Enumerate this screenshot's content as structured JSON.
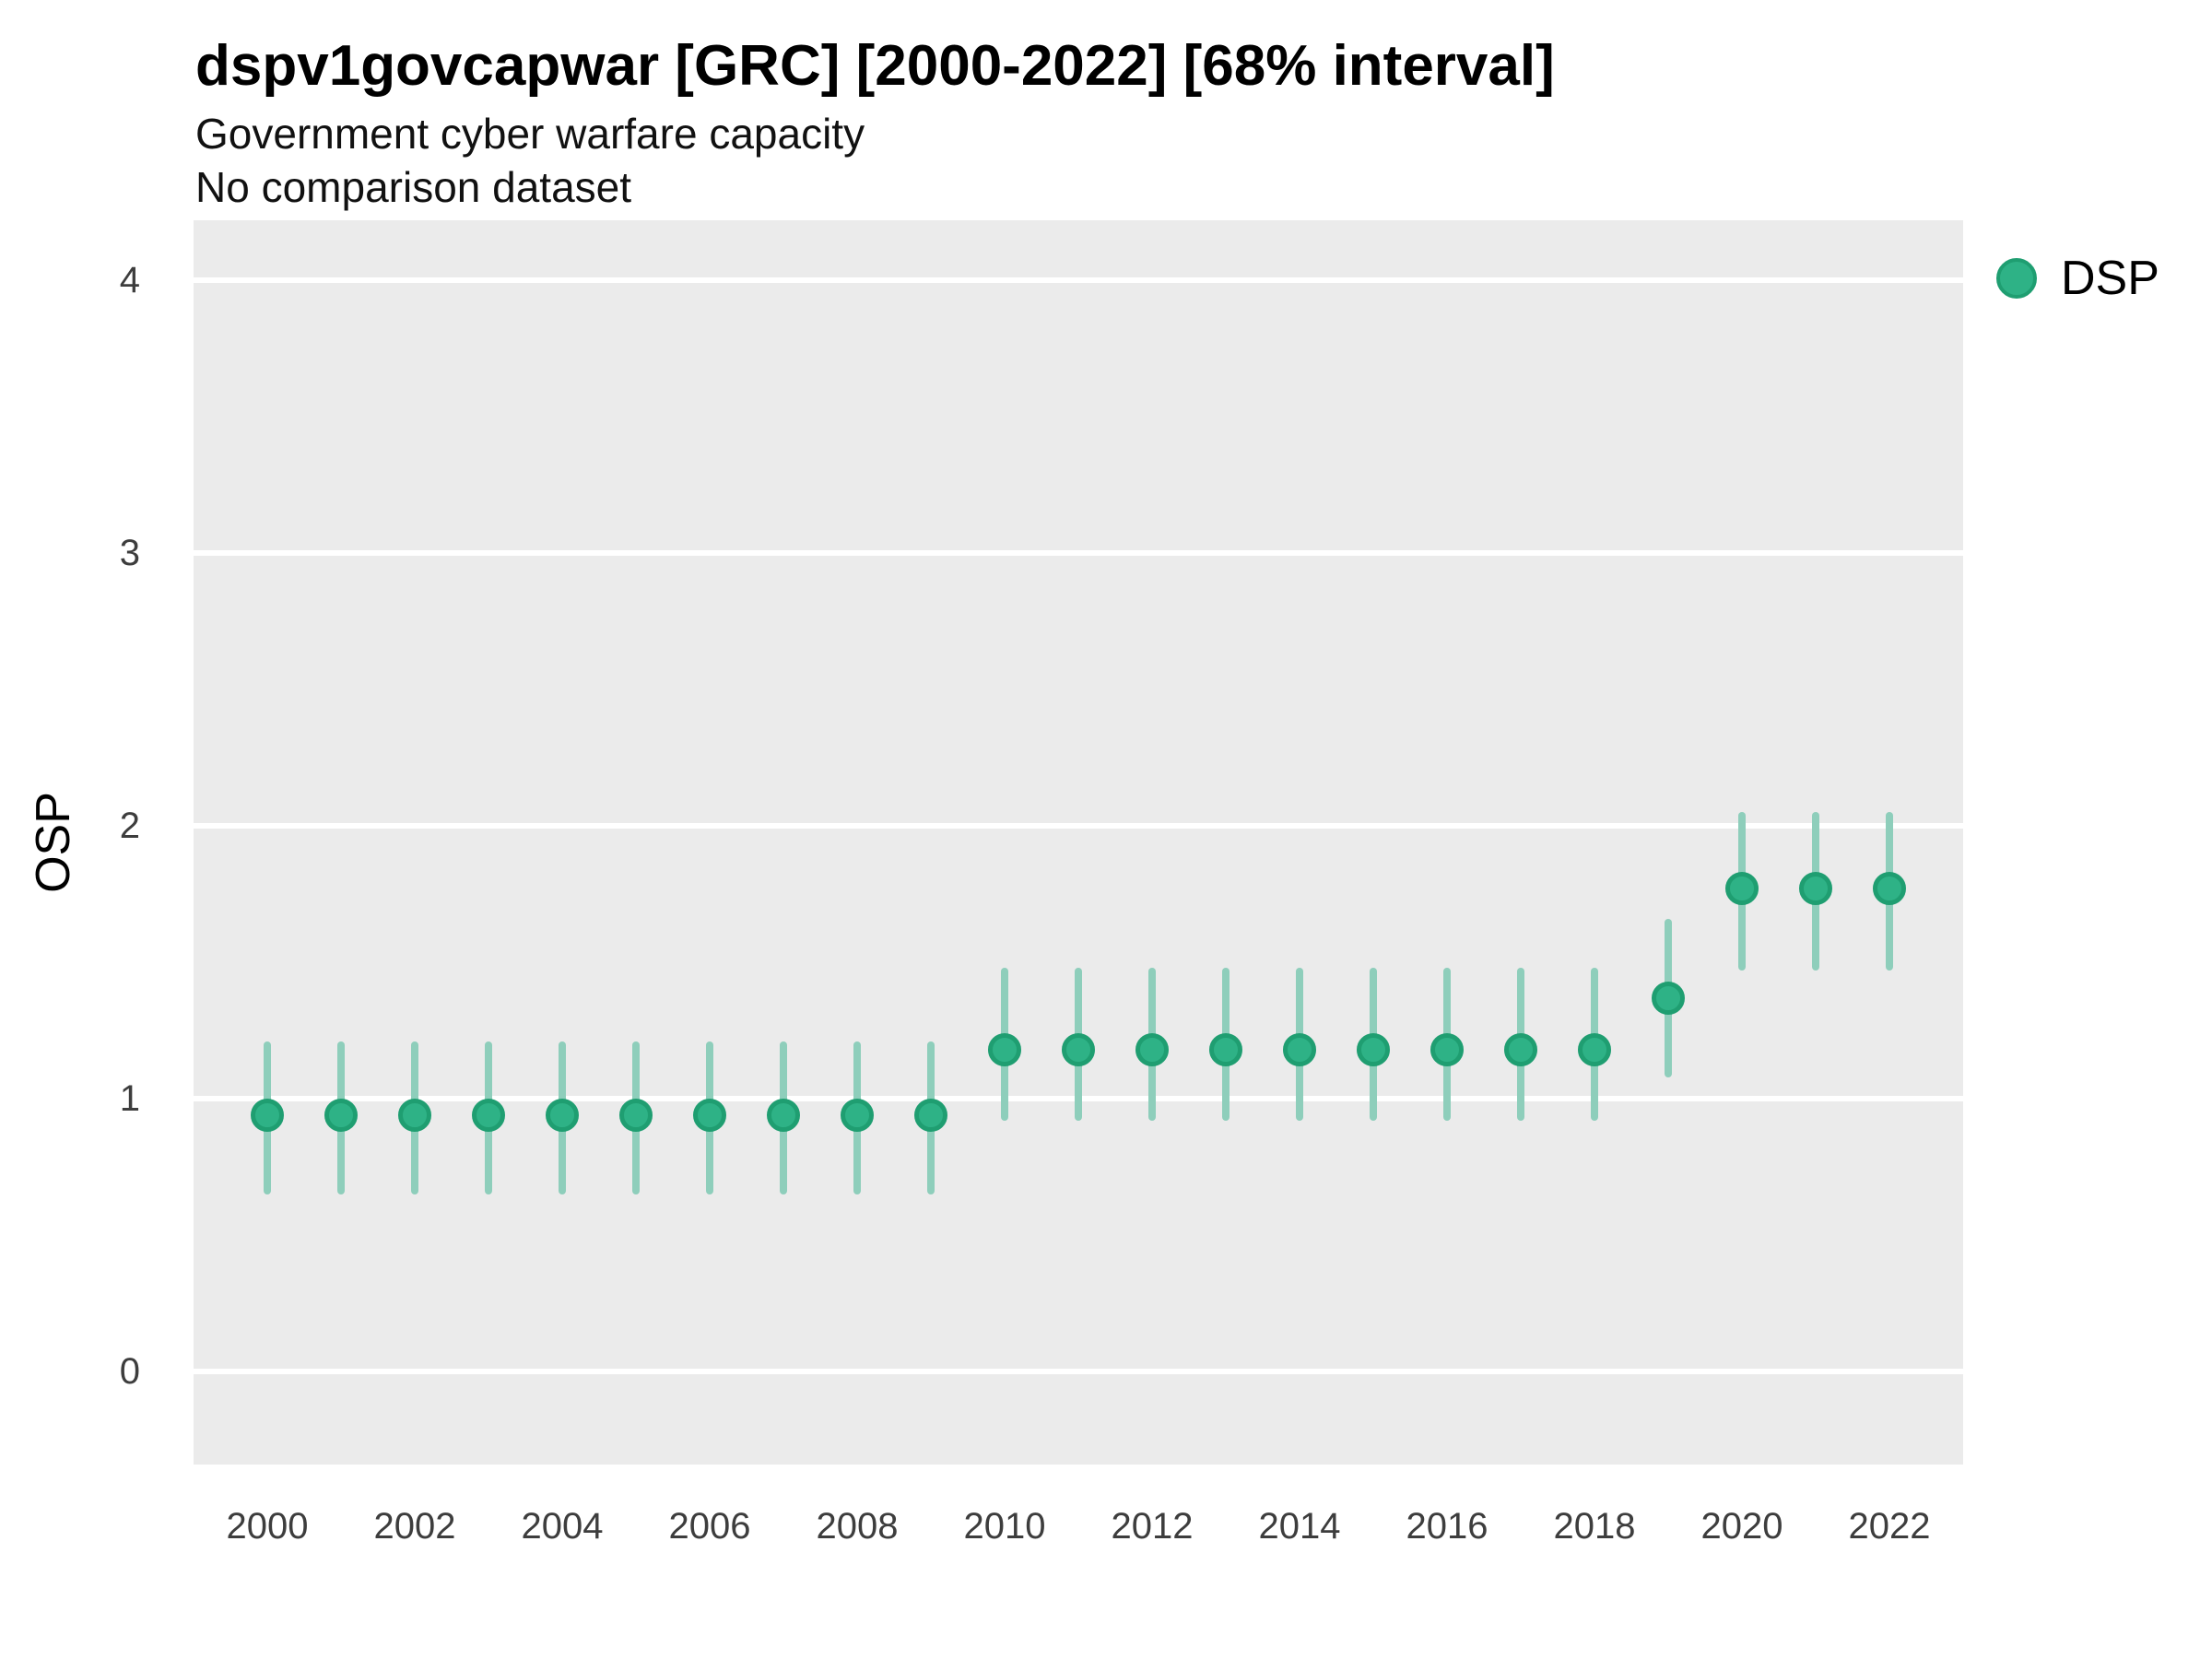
{
  "header": {
    "title": "dspv1govcapwar [GRC] [2000-2022] [68% interval]",
    "subtitle_line1": "Government cyber warfare capacity",
    "subtitle_line2": "No comparison dataset"
  },
  "legend": {
    "label": "DSP"
  },
  "colors": {
    "point_fill": "#2eb286",
    "point_stroke": "#1f9e71",
    "interval_bar": "#8ecebb",
    "panel_background": "#ebebeb",
    "gridline": "#ffffff",
    "tick_text": "#3d3d3d"
  },
  "chart_data": {
    "type": "scatter",
    "title": "dspv1govcapwar [GRC] [2000-2022] [68% interval]",
    "subtitle": "Government cyber warfare capacity / No comparison dataset",
    "xlabel": "",
    "ylabel": "OSP",
    "interval_label": "68% interval",
    "legend_position": "right-top",
    "grid": "horizontal-white-on-gray",
    "xlim": [
      1999,
      2023
    ],
    "ylim": [
      -0.34,
      4.22
    ],
    "yticks": [
      0,
      1,
      2,
      3,
      4
    ],
    "xticks": [
      2000,
      2002,
      2004,
      2006,
      2008,
      2010,
      2012,
      2014,
      2016,
      2018,
      2020,
      2022
    ],
    "x": [
      2000,
      2001,
      2002,
      2003,
      2004,
      2005,
      2006,
      2007,
      2008,
      2009,
      2010,
      2011,
      2012,
      2013,
      2014,
      2015,
      2016,
      2017,
      2018,
      2019,
      2020,
      2021,
      2022
    ],
    "series": [
      {
        "name": "DSP",
        "values": [
          0.94,
          0.94,
          0.94,
          0.94,
          0.94,
          0.94,
          0.94,
          0.94,
          0.94,
          0.94,
          1.18,
          1.18,
          1.18,
          1.18,
          1.18,
          1.18,
          1.18,
          1.18,
          1.18,
          1.37,
          1.77,
          1.77,
          1.77
        ],
        "ci_lower": [
          0.65,
          0.65,
          0.65,
          0.65,
          0.65,
          0.65,
          0.65,
          0.65,
          0.65,
          0.65,
          0.92,
          0.92,
          0.92,
          0.92,
          0.92,
          0.92,
          0.92,
          0.92,
          0.92,
          1.08,
          1.47,
          1.47,
          1.47
        ],
        "ci_upper": [
          1.21,
          1.21,
          1.21,
          1.21,
          1.21,
          1.21,
          1.21,
          1.21,
          1.21,
          1.21,
          1.48,
          1.48,
          1.48,
          1.48,
          1.48,
          1.48,
          1.48,
          1.48,
          1.48,
          1.66,
          2.05,
          2.05,
          2.05
        ]
      }
    ]
  }
}
